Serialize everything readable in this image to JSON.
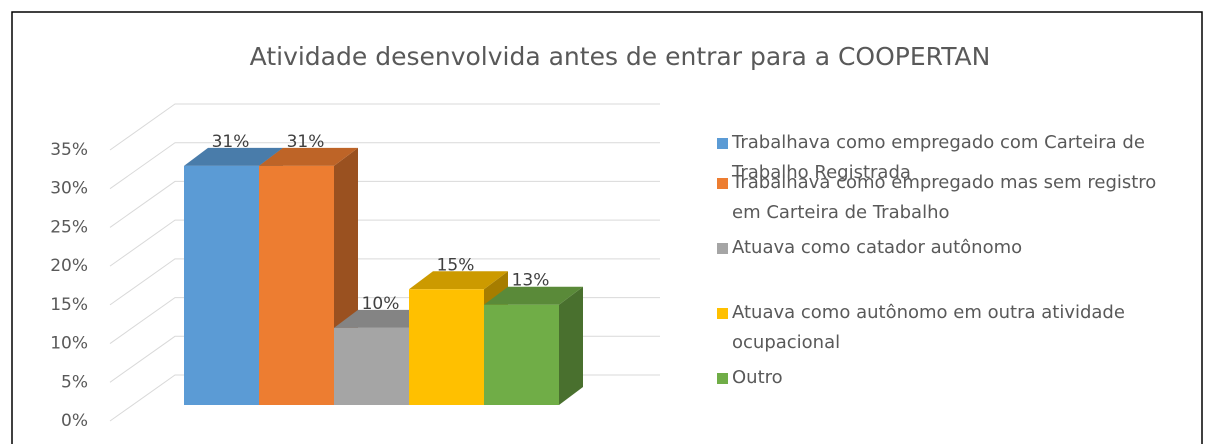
{
  "chart_data": {
    "type": "bar3d",
    "title": "Atividade desenvolvida antes de entrar para a COOPERTAN",
    "categories": [
      null
    ],
    "series": [
      {
        "name": "Trabalhava como empregado com Carteira de Trabalho Registrada",
        "color": "#5b9bd5",
        "values": [
          31
        ],
        "value_labels": [
          "31%"
        ]
      },
      {
        "name": "Trabalhava como empregado mas sem registro em Carteira de Trabalho",
        "color": "#ed7d31",
        "values": [
          31
        ],
        "value_labels": [
          "31%"
        ]
      },
      {
        "name": "Atuava como catador autônomo",
        "color": "#a5a5a5",
        "values": [
          10
        ],
        "value_labels": [
          "10%"
        ]
      },
      {
        "name": "Atuava como autônomo em outra atividade ocupacional",
        "color": "#ffc000",
        "values": [
          15
        ],
        "value_labels": [
          "15%"
        ]
      },
      {
        "name": "Outro",
        "color": "#70ad47",
        "values": [
          13
        ],
        "value_labels": [
          "13%"
        ]
      }
    ],
    "ylim": [
      0,
      35
    ],
    "yticks": [
      {
        "value": 0,
        "label": "0%"
      },
      {
        "value": 5,
        "label": "5%"
      },
      {
        "value": 10,
        "label": "10%"
      },
      {
        "value": 15,
        "label": "15%"
      },
      {
        "value": 20,
        "label": "20%"
      },
      {
        "value": 25,
        "label": "25%"
      },
      {
        "value": 30,
        "label": "30%"
      },
      {
        "value": 35,
        "label": "35%"
      }
    ],
    "grid": true,
    "legend": "right"
  }
}
